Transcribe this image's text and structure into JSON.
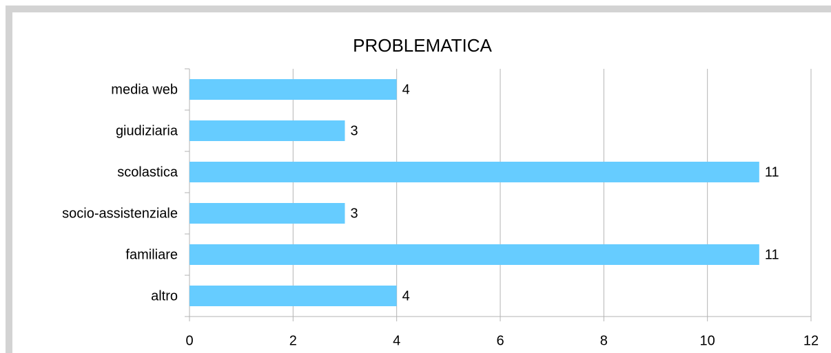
{
  "chart_data": {
    "type": "bar",
    "orientation": "horizontal",
    "title": "PROBLEMATICA",
    "categories": [
      "media web",
      "giudiziaria",
      "scolastica",
      "socio-assistenziale",
      "familiare",
      "altro"
    ],
    "values": [
      4,
      3,
      11,
      3,
      11,
      4
    ],
    "color": "#66ccff",
    "xlim": [
      0,
      12
    ],
    "xticks": [
      0,
      2,
      4,
      6,
      8,
      10,
      12
    ],
    "grid": true
  }
}
